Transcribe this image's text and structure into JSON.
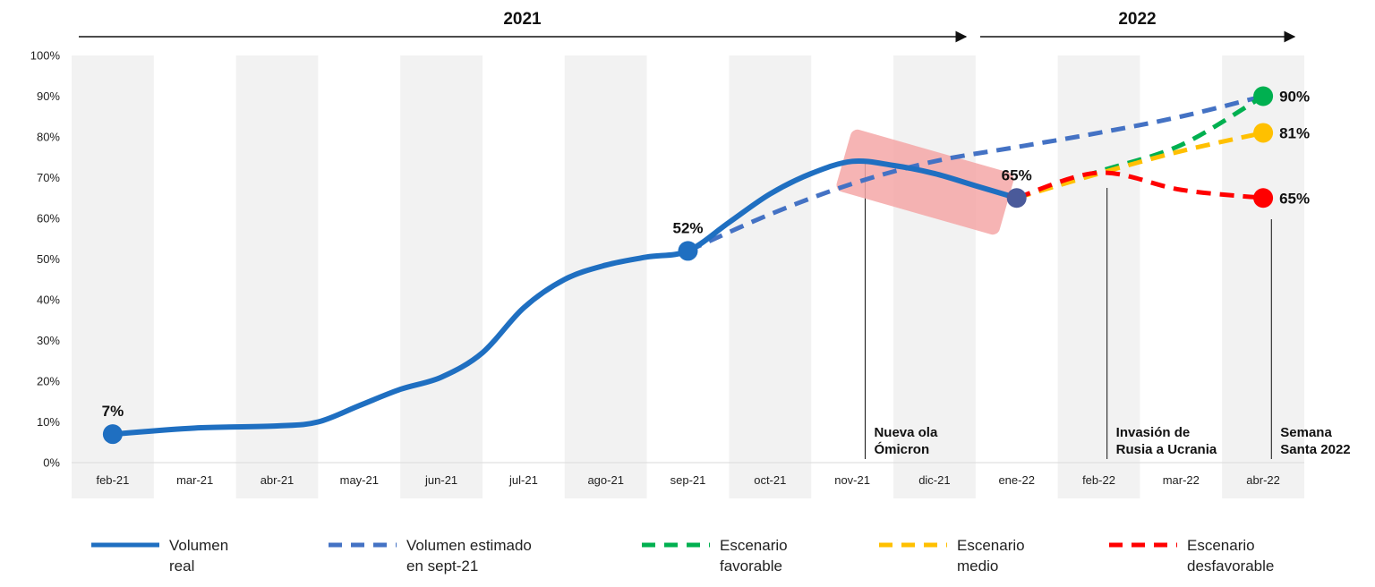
{
  "chart_data": {
    "type": "line",
    "categories": [
      "feb-21",
      "mar-21",
      "abr-21",
      "may-21",
      "jun-21",
      "jul-21",
      "ago-21",
      "sep-21",
      "oct-21",
      "nov-21",
      "dic-21",
      "ene-22",
      "feb-22",
      "mar-22",
      "abr-22"
    ],
    "y_ticks": [
      "0%",
      "10%",
      "20%",
      "30%",
      "40%",
      "50%",
      "60%",
      "70%",
      "80%",
      "90%",
      "100%"
    ],
    "ylim": [
      0,
      100
    ],
    "years": [
      {
        "label": "2021",
        "from": 0,
        "to": 10.5
      },
      {
        "label": "2022",
        "from": 10.5,
        "to": 14.4
      }
    ],
    "series": [
      {
        "name": "Volumen real",
        "style": "solid",
        "color": "#1f6fc1",
        "points": [
          [
            0,
            7
          ],
          [
            1,
            8.5
          ],
          [
            2,
            9
          ],
          [
            2.5,
            10
          ],
          [
            3,
            14
          ],
          [
            3.5,
            18
          ],
          [
            4,
            21
          ],
          [
            4.5,
            27
          ],
          [
            5,
            38
          ],
          [
            5.5,
            45
          ],
          [
            6,
            48.5
          ],
          [
            6.5,
            50.5
          ],
          [
            7,
            52
          ],
          [
            7.5,
            59
          ],
          [
            8,
            66
          ],
          [
            8.5,
            71
          ],
          [
            9,
            74
          ],
          [
            9.5,
            73
          ],
          [
            10,
            71
          ],
          [
            10.5,
            68
          ],
          [
            11,
            65
          ]
        ]
      },
      {
        "name": "Volumen estimado en sept-21",
        "style": "dashed",
        "color": "#4472c4",
        "points": [
          [
            7,
            52
          ],
          [
            8,
            61
          ],
          [
            9,
            68.5
          ],
          [
            10,
            74
          ],
          [
            11,
            77.5
          ],
          [
            12,
            81
          ],
          [
            13,
            85
          ],
          [
            14,
            90
          ]
        ]
      },
      {
        "name": "Escenario favorable",
        "style": "dashed",
        "color": "#00b050",
        "points": [
          [
            11,
            65
          ],
          [
            12,
            71.5
          ],
          [
            13,
            78
          ],
          [
            14,
            90
          ]
        ]
      },
      {
        "name": "Escenario medio",
        "style": "dashed",
        "color": "#ffc000",
        "points": [
          [
            11,
            65
          ],
          [
            12,
            71
          ],
          [
            13,
            76.5
          ],
          [
            14,
            81
          ]
        ]
      },
      {
        "name": "Escenario desfavorable",
        "style": "dashed",
        "color": "#ff0000",
        "points": [
          [
            11,
            65
          ],
          [
            12,
            71.2
          ],
          [
            13,
            67
          ],
          [
            14,
            65
          ]
        ]
      }
    ],
    "markers": [
      {
        "x": 0,
        "y": 7,
        "color": "#1f6fc1",
        "label": "7%",
        "pos": "above"
      },
      {
        "x": 7,
        "y": 52,
        "color": "#1f6fc1",
        "label": "52%",
        "pos": "above"
      },
      {
        "x": 11,
        "y": 65,
        "color": "#4a5a9a",
        "label": "65%",
        "pos": "above"
      },
      {
        "x": 14,
        "y": 90,
        "color": "#00b050",
        "label": "90%",
        "pos": "right"
      },
      {
        "x": 14,
        "y": 81,
        "color": "#ffc000",
        "label": "81%",
        "pos": "right"
      },
      {
        "x": 14,
        "y": 65,
        "color": "#ff0000",
        "label": "65%",
        "pos": "right"
      }
    ],
    "annotations": [
      {
        "x": 9.2,
        "lines": [
          "Nueva ola",
          "Ómicron"
        ]
      },
      {
        "x": 12.1,
        "lines": [
          "Invasión de",
          "Rusia a Ucrania"
        ]
      },
      {
        "x": 14.1,
        "lines": [
          "Semana",
          "Santa 2022"
        ]
      }
    ],
    "highlight": {
      "from": [
        9.0,
        74
      ],
      "to": [
        10.5,
        66
      ],
      "color": "#f4a7a7"
    },
    "legend": [
      {
        "lines": [
          "Volumen",
          "real"
        ],
        "color": "#1f6fc1",
        "style": "solid"
      },
      {
        "lines": [
          "Volumen estimado",
          "en sept-21"
        ],
        "color": "#4472c4",
        "style": "dashed"
      },
      {
        "lines": [
          "Escenario",
          "favorable"
        ],
        "color": "#00b050",
        "style": "dashed"
      },
      {
        "lines": [
          "Escenario",
          "medio"
        ],
        "color": "#ffc000",
        "style": "dashed"
      },
      {
        "lines": [
          "Escenario",
          "desfavorable"
        ],
        "color": "#ff0000",
        "style": "dashed"
      }
    ],
    "grid": false,
    "legend_position": "bottom",
    "column_shading": "alternate"
  }
}
